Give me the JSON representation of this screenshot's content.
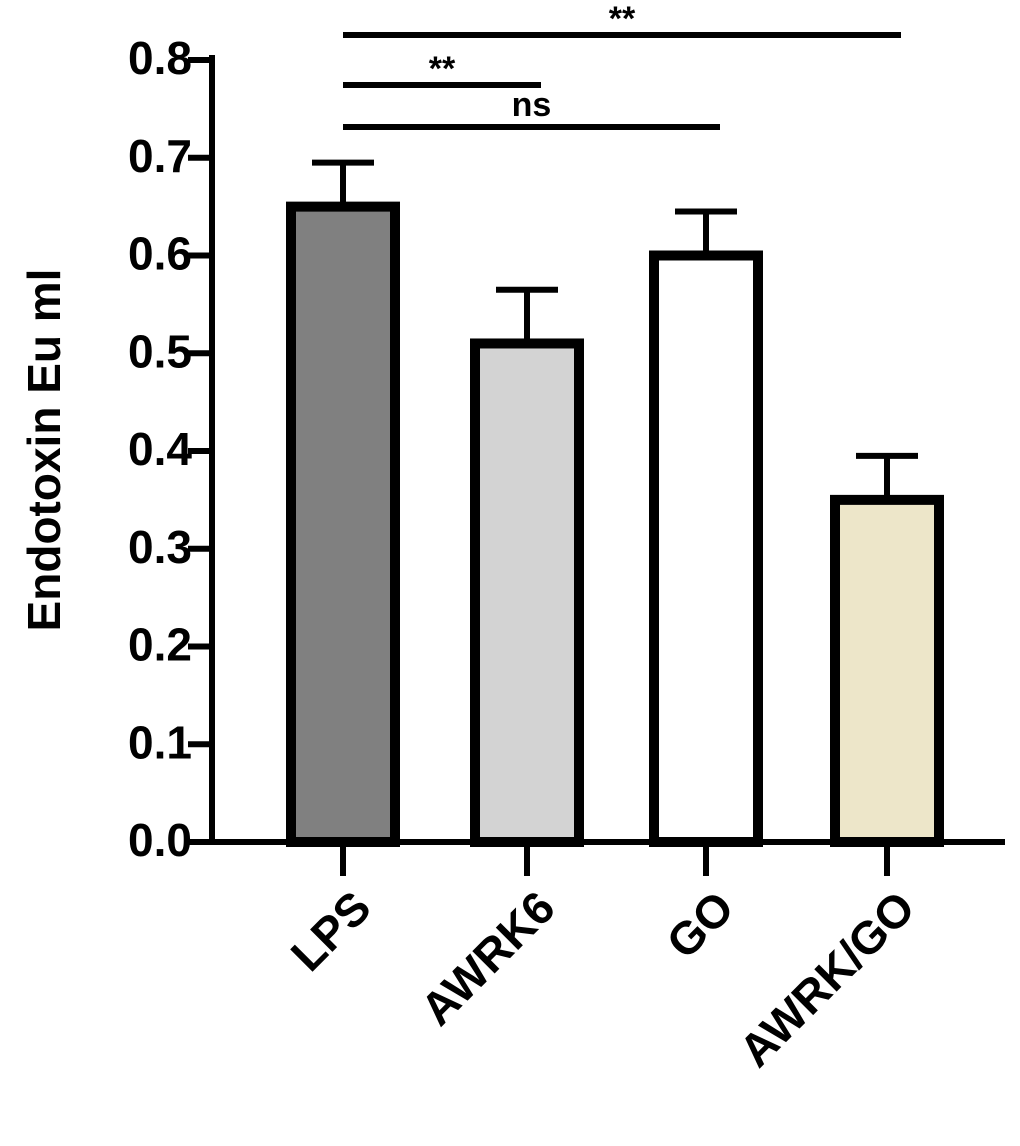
{
  "chart_data": {
    "type": "bar",
    "y_label": "Endotoxin Eu ml",
    "categories": [
      "LPS",
      "AWRK6",
      "GO",
      "AWRK/GO"
    ],
    "values": [
      0.65,
      0.51,
      0.6,
      0.35
    ],
    "errors": [
      0.045,
      0.055,
      0.045,
      0.045
    ],
    "colors": [
      "#808080",
      "#d3d3d3",
      "#ffffff",
      "#ede6c9"
    ],
    "ylim": [
      0,
      0.8
    ],
    "yticks": [
      {
        "value": 0,
        "label": "0.0"
      },
      0.1,
      0.2,
      0.3,
      0.4,
      0.5,
      0.6,
      0.7,
      0.8
    ],
    "comparisons": [
      {
        "label": "**",
        "from": 0,
        "to": 3
      },
      {
        "label": "**",
        "from": 0,
        "to": 1
      },
      {
        "label": "ns",
        "from": 0,
        "to": 2
      }
    ]
  }
}
